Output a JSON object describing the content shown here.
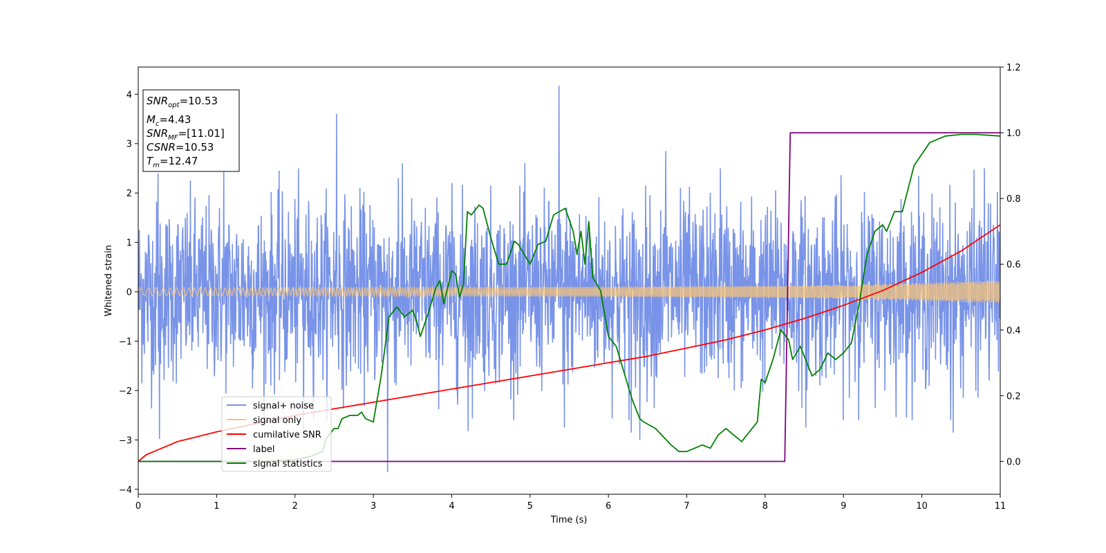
{
  "chart_data": {
    "type": "line",
    "xlabel": "Time (s)",
    "ylabel": "Whitened strain",
    "xlim": [
      0,
      11
    ],
    "ylim": [
      -4.1,
      4.55
    ],
    "y2lim": [
      -0.1,
      1.2
    ],
    "x_ticks": [
      "0",
      "1",
      "2",
      "3",
      "4",
      "5",
      "6",
      "7",
      "8",
      "9",
      "10",
      "11"
    ],
    "y_ticks": [
      "−4",
      "−3",
      "−2",
      "−1",
      "0",
      "1",
      "2",
      "3",
      "4"
    ],
    "y2_ticks": [
      "0.0",
      "0.2",
      "0.4",
      "0.6",
      "0.8",
      "1.0",
      "1.2"
    ],
    "grid": false,
    "legend_position": "lower-left",
    "info_box": {
      "snr_opt": "=10.53",
      "mc": "=4.43",
      "snr_mf": "=[11.01]",
      "csnr": "=10.53",
      "tm": "=12.47"
    },
    "series": [
      {
        "name": "signal+ noise",
        "color": "#7893e8",
        "axis": "left",
        "description": "whitened noisy strain, fluctuates roughly between -3.7 and 4.2 around 0",
        "envelope": {
          "typical_sd": 0.9,
          "min": -3.7,
          "max": 4.2
        },
        "spikes": [
          [
            0.25,
            2.4
          ],
          [
            0.27,
            -2.98
          ],
          [
            1.09,
            2.6
          ],
          [
            2.11,
            -2.95
          ],
          [
            2.53,
            3.6
          ],
          [
            3.18,
            -3.65
          ],
          [
            3.32,
            2.3
          ],
          [
            4.21,
            -2.82
          ],
          [
            5.37,
            4.17
          ],
          [
            5.44,
            -2.75
          ],
          [
            6.29,
            -2.85
          ],
          [
            6.4,
            -3.0
          ],
          [
            6.73,
            2.85
          ],
          [
            7.43,
            2.5
          ],
          [
            8.52,
            -2.75
          ],
          [
            10.4,
            -2.85
          ],
          [
            10.8,
            2.5
          ]
        ]
      },
      {
        "name": "signal only",
        "color": "#f5c37a",
        "axis": "left",
        "description": "chirp signal with slowly growing amplitude",
        "amplitude": {
          "x": [
            0,
            2,
            4,
            6,
            8,
            9,
            10,
            11
          ],
          "y": [
            0.08,
            0.08,
            0.09,
            0.1,
            0.12,
            0.14,
            0.18,
            0.23
          ]
        }
      },
      {
        "name": "cumilative SNR",
        "color": "#ff0000",
        "axis": "right",
        "x": [
          0,
          0.1,
          0.25,
          0.5,
          1,
          1.5,
          2,
          2.5,
          3,
          3.5,
          4,
          4.5,
          5,
          5.5,
          6,
          6.5,
          7,
          7.5,
          8,
          8.5,
          9,
          9.5,
          10,
          10.5,
          11
        ],
        "y": [
          0.0,
          0.02,
          0.035,
          0.06,
          0.09,
          0.115,
          0.14,
          0.16,
          0.18,
          0.2,
          0.22,
          0.24,
          0.26,
          0.28,
          0.3,
          0.32,
          0.345,
          0.37,
          0.4,
          0.435,
          0.475,
          0.52,
          0.575,
          0.64,
          0.72
        ]
      },
      {
        "name": "label",
        "color": "#800080",
        "axis": "right",
        "x": [
          0,
          8.25,
          8.32,
          11
        ],
        "y": [
          0,
          0,
          1,
          1
        ]
      },
      {
        "name": "signal statistics",
        "color": "#008000",
        "axis": "right",
        "x": [
          0,
          0.5,
          1,
          1.5,
          2,
          2.2,
          2.35,
          2.4,
          2.5,
          2.55,
          2.6,
          2.7,
          2.8,
          2.85,
          2.9,
          3.0,
          3.1,
          3.2,
          3.3,
          3.4,
          3.5,
          3.55,
          3.6,
          3.7,
          3.8,
          3.85,
          3.9,
          4.0,
          4.05,
          4.1,
          4.15,
          4.2,
          4.25,
          4.35,
          4.4,
          4.5,
          4.6,
          4.7,
          4.8,
          4.85,
          4.9,
          5.0,
          5.1,
          5.2,
          5.3,
          5.45,
          5.55,
          5.6,
          5.65,
          5.7,
          5.75,
          5.8,
          5.9,
          6.0,
          6.1,
          6.2,
          6.3,
          6.4,
          6.45,
          6.6,
          6.8,
          6.9,
          7.0,
          7.2,
          7.3,
          7.4,
          7.5,
          7.6,
          7.7,
          7.8,
          7.9,
          7.95,
          8.0,
          8.1,
          8.2,
          8.3,
          8.35,
          8.45,
          8.6,
          8.7,
          8.8,
          8.9,
          9.0,
          9.1,
          9.2,
          9.3,
          9.4,
          9.5,
          9.55,
          9.65,
          9.75,
          9.9,
          10.1,
          10.3,
          10.5,
          10.7,
          11
        ],
        "y": [
          0,
          0.0,
          0.0,
          0.0,
          0.005,
          0.015,
          0.03,
          0.07,
          0.1,
          0.1,
          0.13,
          0.14,
          0.14,
          0.15,
          0.13,
          0.12,
          0.26,
          0.44,
          0.47,
          0.44,
          0.46,
          0.43,
          0.38,
          0.45,
          0.53,
          0.55,
          0.48,
          0.58,
          0.57,
          0.5,
          0.54,
          0.76,
          0.75,
          0.78,
          0.77,
          0.68,
          0.6,
          0.6,
          0.67,
          0.66,
          0.64,
          0.6,
          0.66,
          0.67,
          0.75,
          0.77,
          0.7,
          0.63,
          0.7,
          0.6,
          0.73,
          0.56,
          0.52,
          0.38,
          0.35,
          0.27,
          0.19,
          0.13,
          0.12,
          0.1,
          0.05,
          0.03,
          0.03,
          0.05,
          0.04,
          0.08,
          0.1,
          0.08,
          0.06,
          0.09,
          0.12,
          0.25,
          0.24,
          0.31,
          0.4,
          0.37,
          0.31,
          0.35,
          0.26,
          0.28,
          0.33,
          0.31,
          0.33,
          0.36,
          0.48,
          0.63,
          0.7,
          0.72,
          0.7,
          0.76,
          0.76,
          0.9,
          0.97,
          0.99,
          0.995,
          0.995,
          0.99
        ]
      }
    ]
  }
}
